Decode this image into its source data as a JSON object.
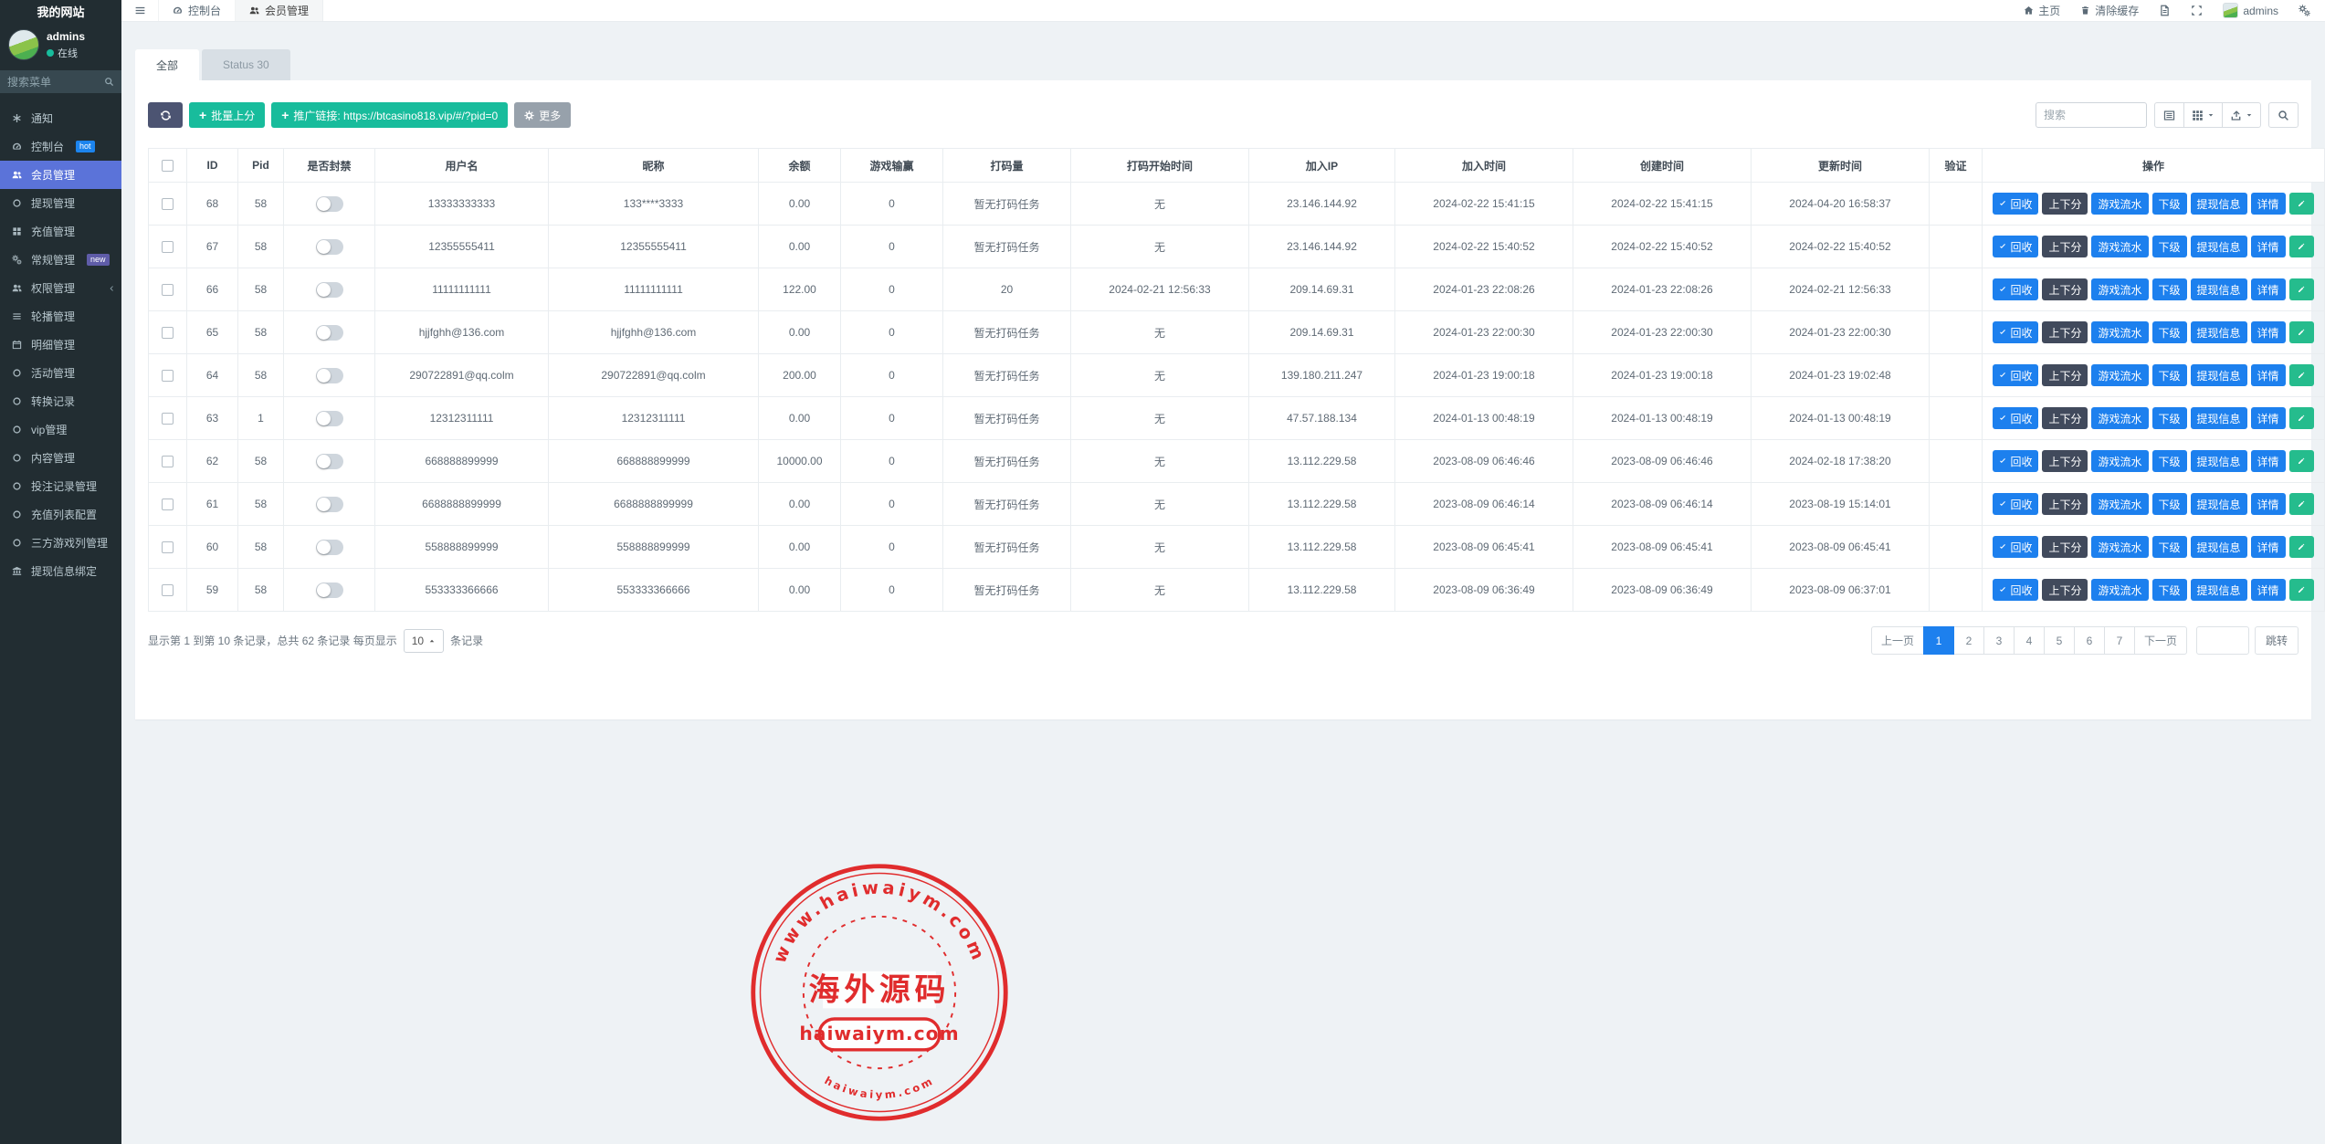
{
  "sidebar": {
    "brand": "我的网站",
    "user": {
      "name": "admins",
      "status": "在线"
    },
    "search_placeholder": "搜索菜单",
    "items": [
      {
        "key": "notice",
        "label": "通知",
        "icon": "asterisk"
      },
      {
        "key": "console",
        "label": "控制台",
        "icon": "gauge",
        "badge": "hot"
      },
      {
        "key": "members",
        "label": "会员管理",
        "icon": "users",
        "active": true
      },
      {
        "key": "withdraw",
        "label": "提现管理",
        "icon": "circle"
      },
      {
        "key": "recharge",
        "label": "充值管理",
        "icon": "grid"
      },
      {
        "key": "general",
        "label": "常规管理",
        "icon": "gears",
        "badge": "new"
      },
      {
        "key": "permission",
        "label": "权限管理",
        "icon": "users",
        "chevron": true
      },
      {
        "key": "carousel",
        "label": "轮播管理",
        "icon": "bars"
      },
      {
        "key": "detail",
        "label": "明细管理",
        "icon": "calendar"
      },
      {
        "key": "activity",
        "label": "活动管理",
        "icon": "circle"
      },
      {
        "key": "convert",
        "label": "转换记录",
        "icon": "circle"
      },
      {
        "key": "vip",
        "label": "vip管理",
        "icon": "circle"
      },
      {
        "key": "content",
        "label": "内容管理",
        "icon": "circle"
      },
      {
        "key": "bet-records",
        "label": "投注记录管理",
        "icon": "circle"
      },
      {
        "key": "recharge-list",
        "label": "充值列表配置",
        "icon": "circle"
      },
      {
        "key": "third-games",
        "label": "三方游戏列管理",
        "icon": "circle"
      },
      {
        "key": "withdraw-binding",
        "label": "提现信息绑定",
        "icon": "bank"
      }
    ]
  },
  "topbar": {
    "tabs": [
      {
        "label": "控制台",
        "icon": "gauge"
      },
      {
        "label": "会员管理",
        "icon": "users",
        "active": true
      }
    ],
    "home_label": "主页",
    "clear_cache_label": "清除缓存",
    "username": "admins"
  },
  "filters": {
    "tabs": [
      {
        "label": "全部",
        "active": true
      },
      {
        "label": "Status 30"
      }
    ]
  },
  "toolbar": {
    "batch_label": "批量上分",
    "promo_label": "推广链接: https://btcasino818.vip/#/?pid=0",
    "more_label": "更多",
    "search_placeholder": "搜索"
  },
  "table": {
    "headers": [
      "ID",
      "Pid",
      "是否封禁",
      "用户名",
      "昵称",
      "余额",
      "游戏输赢",
      "打码量",
      "打码开始时间",
      "加入IP",
      "加入时间",
      "创建时间",
      "更新时间",
      "验证",
      "操作"
    ],
    "row_actions": [
      {
        "name": "recycle-button",
        "label": "回收",
        "style": "blue",
        "icon": "check"
      },
      {
        "name": "updown-button",
        "label": "上下分",
        "style": "dark"
      },
      {
        "name": "game-flow-button",
        "label": "游戏流水",
        "style": "blue"
      },
      {
        "name": "subordinate-button",
        "label": "下级",
        "style": "blue"
      },
      {
        "name": "withdraw-info-button",
        "label": "提现信息",
        "style": "blue"
      },
      {
        "name": "detail-button",
        "label": "详情",
        "style": "blue"
      },
      {
        "name": "edit-button",
        "label": "",
        "style": "green",
        "icon": "pencil"
      }
    ],
    "rows": [
      {
        "id": "68",
        "pid": "58",
        "username": "13333333333",
        "nickname": "133****3333",
        "balance": "0.00",
        "win_loss": "0",
        "turnover": "暂无打码任务",
        "turnover_start": "无",
        "join_ip": "23.146.144.92",
        "join_time": "2024-02-22 15:41:15",
        "create_time": "2024-02-22 15:41:15",
        "update_time": "2024-04-20 16:58:37",
        "verify": ""
      },
      {
        "id": "67",
        "pid": "58",
        "username": "12355555411",
        "nickname": "12355555411",
        "balance": "0.00",
        "win_loss": "0",
        "turnover": "暂无打码任务",
        "turnover_start": "无",
        "join_ip": "23.146.144.92",
        "join_time": "2024-02-22 15:40:52",
        "create_time": "2024-02-22 15:40:52",
        "update_time": "2024-02-22 15:40:52",
        "verify": ""
      },
      {
        "id": "66",
        "pid": "58",
        "username": "11111111111",
        "nickname": "11111111111",
        "balance": "122.00",
        "win_loss": "0",
        "turnover": "20",
        "turnover_start": "2024-02-21 12:56:33",
        "join_ip": "209.14.69.31",
        "join_time": "2024-01-23 22:08:26",
        "create_time": "2024-01-23 22:08:26",
        "update_time": "2024-02-21 12:56:33",
        "verify": ""
      },
      {
        "id": "65",
        "pid": "58",
        "username": "hjjfghh@136.com",
        "nickname": "hjjfghh@136.com",
        "balance": "0.00",
        "win_loss": "0",
        "turnover": "暂无打码任务",
        "turnover_start": "无",
        "join_ip": "209.14.69.31",
        "join_time": "2024-01-23 22:00:30",
        "create_time": "2024-01-23 22:00:30",
        "update_time": "2024-01-23 22:00:30",
        "verify": ""
      },
      {
        "id": "64",
        "pid": "58",
        "username": "290722891@qq.colm",
        "nickname": "290722891@qq.colm",
        "balance": "200.00",
        "win_loss": "0",
        "turnover": "暂无打码任务",
        "turnover_start": "无",
        "join_ip": "139.180.211.247",
        "join_time": "2024-01-23 19:00:18",
        "create_time": "2024-01-23 19:00:18",
        "update_time": "2024-01-23 19:02:48",
        "verify": ""
      },
      {
        "id": "63",
        "pid": "1",
        "username": "12312311111",
        "nickname": "12312311111",
        "balance": "0.00",
        "win_loss": "0",
        "turnover": "暂无打码任务",
        "turnover_start": "无",
        "join_ip": "47.57.188.134",
        "join_time": "2024-01-13 00:48:19",
        "create_time": "2024-01-13 00:48:19",
        "update_time": "2024-01-13 00:48:19",
        "verify": ""
      },
      {
        "id": "62",
        "pid": "58",
        "username": "668888899999",
        "nickname": "668888899999",
        "balance": "10000.00",
        "win_loss": "0",
        "turnover": "暂无打码任务",
        "turnover_start": "无",
        "join_ip": "13.112.229.58",
        "join_time": "2023-08-09 06:46:46",
        "create_time": "2023-08-09 06:46:46",
        "update_time": "2024-02-18 17:38:20",
        "verify": ""
      },
      {
        "id": "61",
        "pid": "58",
        "username": "6688888899999",
        "nickname": "6688888899999",
        "balance": "0.00",
        "win_loss": "0",
        "turnover": "暂无打码任务",
        "turnover_start": "无",
        "join_ip": "13.112.229.58",
        "join_time": "2023-08-09 06:46:14",
        "create_time": "2023-08-09 06:46:14",
        "update_time": "2023-08-19 15:14:01",
        "verify": ""
      },
      {
        "id": "60",
        "pid": "58",
        "username": "558888899999",
        "nickname": "558888899999",
        "balance": "0.00",
        "win_loss": "0",
        "turnover": "暂无打码任务",
        "turnover_start": "无",
        "join_ip": "13.112.229.58",
        "join_time": "2023-08-09 06:45:41",
        "create_time": "2023-08-09 06:45:41",
        "update_time": "2023-08-09 06:45:41",
        "verify": ""
      },
      {
        "id": "59",
        "pid": "58",
        "username": "553333366666",
        "nickname": "553333366666",
        "balance": "0.00",
        "win_loss": "0",
        "turnover": "暂无打码任务",
        "turnover_start": "无",
        "join_ip": "13.112.229.58",
        "join_time": "2023-08-09 06:36:49",
        "create_time": "2023-08-09 06:36:49",
        "update_time": "2023-08-09 06:37:01",
        "verify": ""
      }
    ]
  },
  "pagination": {
    "info_prefix": "显示第 1 到第 10 条记录，总共 62 条记录 每页显示",
    "per_page": "10",
    "info_suffix": "条记录",
    "prev": "上一页",
    "next": "下一页",
    "pages": [
      "1",
      "2",
      "3",
      "4",
      "5",
      "6",
      "7"
    ],
    "active_page": "1",
    "jump_label": "跳转"
  },
  "watermark": {
    "arc_top": "www.haiwaiym.com",
    "center": "海外源码",
    "box": "haiwaiym.com",
    "arc_bottom": "haiwaiym.com",
    "color": "#e01e1e"
  },
  "colors": {
    "sidebar_bg": "#222d32",
    "accent_active": "#5b73d9",
    "green": "#18bc9c",
    "action_blue": "#1d80ee",
    "action_dark": "#414a5c",
    "badge_hot": "#1c84ee",
    "badge_new": "#5f5ca8",
    "stamp_red": "#e01e1e"
  }
}
